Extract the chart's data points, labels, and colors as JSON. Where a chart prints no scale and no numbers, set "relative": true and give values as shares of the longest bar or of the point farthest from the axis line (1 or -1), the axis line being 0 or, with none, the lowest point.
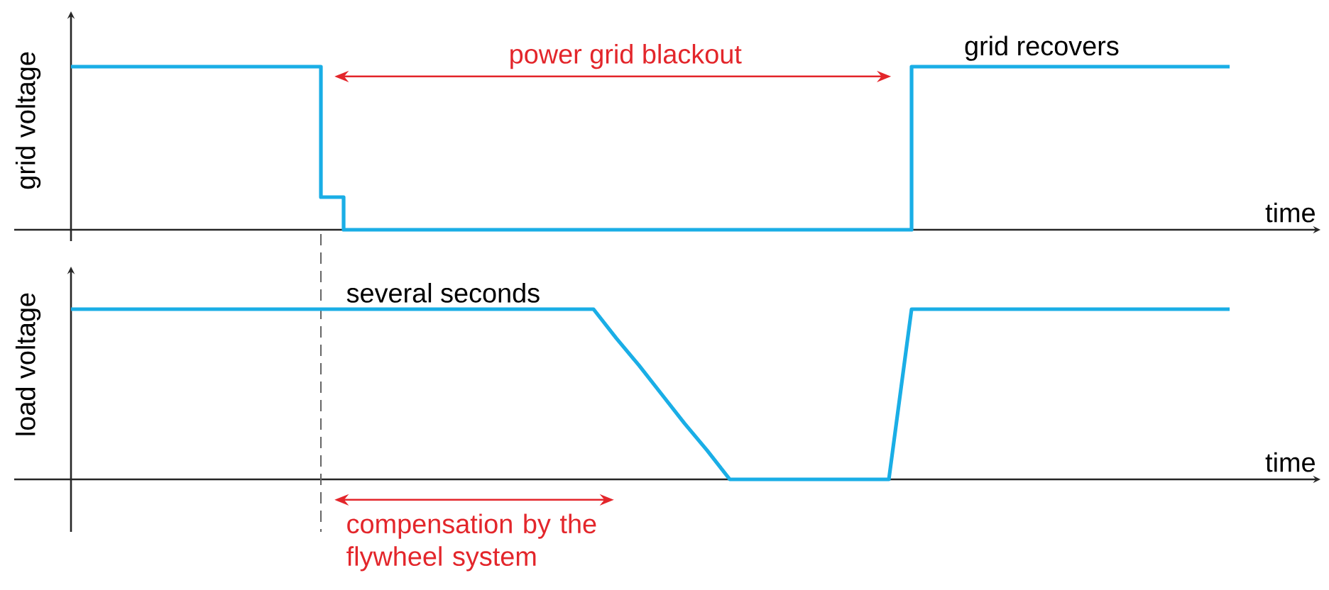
{
  "chart_data": [
    {
      "type": "step",
      "relative": true,
      "ylabel": "grid voltage",
      "xlabel": "time",
      "color": "#1aaee6",
      "categories": [
        null,
        null,
        null,
        null,
        null,
        null,
        null,
        null,
        null,
        null,
        null,
        null,
        null,
        null,
        null,
        null,
        null,
        null,
        null,
        null,
        null,
        null,
        null,
        null,
        null,
        null,
        null,
        null,
        null,
        null,
        null,
        null,
        null,
        null,
        null,
        null,
        null,
        null,
        null,
        null,
        null,
        null,
        null,
        null,
        null,
        null,
        null,
        null,
        null,
        null,
        null,
        null
      ],
      "values": [
        1,
        1,
        1,
        1,
        1,
        1,
        1,
        1,
        1,
        1,
        1,
        0.2,
        0,
        0,
        0,
        0,
        0,
        0,
        0,
        0,
        0,
        0,
        0,
        0,
        0,
        0,
        0,
        0,
        0,
        0,
        0,
        0,
        0,
        0,
        0,
        0,
        0,
        1,
        1,
        1,
        1,
        1,
        1,
        1,
        1,
        1,
        1,
        1,
        1,
        1,
        1,
        1
      ],
      "annotations": [
        "power grid blackout",
        "grid recovers"
      ]
    },
    {
      "type": "line",
      "relative": true,
      "ylabel": "load voltage",
      "xlabel": "time",
      "color": "#1aaee6",
      "categories": [
        null,
        null,
        null,
        null,
        null,
        null,
        null,
        null,
        null,
        null,
        null,
        null,
        null,
        null,
        null,
        null,
        null,
        null,
        null,
        null,
        null,
        null,
        null,
        null,
        null,
        null,
        null,
        null,
        null,
        null,
        null,
        null,
        null,
        null,
        null,
        null,
        null,
        null,
        null,
        null,
        null,
        null,
        null,
        null,
        null,
        null,
        null,
        null,
        null,
        null,
        null,
        null
      ],
      "values": [
        1,
        1,
        1,
        1,
        1,
        1,
        1,
        1,
        1,
        1,
        1,
        1,
        1,
        1,
        1,
        1,
        1,
        1,
        1,
        1,
        1,
        1,
        1,
        1,
        0.83,
        0.67,
        0.5,
        0.33,
        0.17,
        0,
        0,
        0,
        0,
        0,
        0,
        0,
        0,
        1,
        1,
        1,
        1,
        1,
        1,
        1,
        1,
        1,
        1,
        1,
        1,
        1,
        1,
        1
      ],
      "annotations": [
        "several seconds",
        "compensation by the flywheel system"
      ]
    }
  ]
}
